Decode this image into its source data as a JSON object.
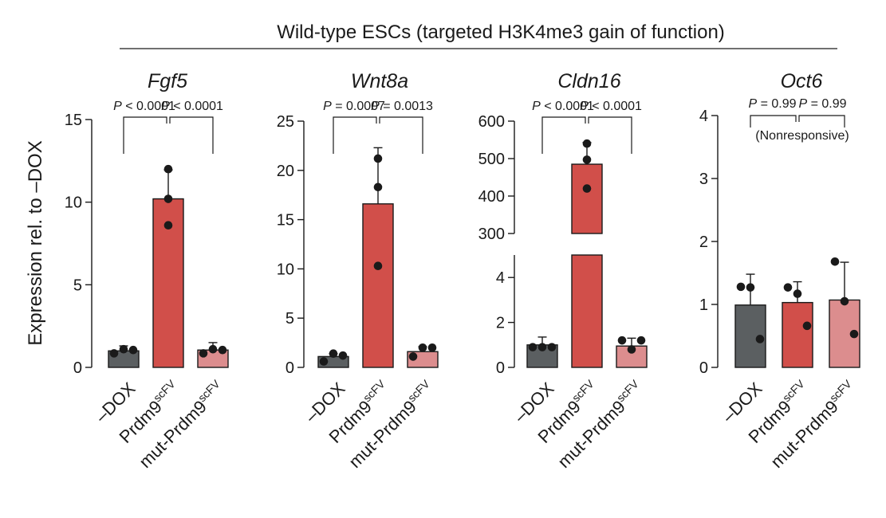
{
  "header": "Wild-type ESCs (targeted H3K4me3 gain of function)",
  "ylabel": "Expression rel. to –DOX",
  "categories": [
    {
      "base": "–DOX",
      "sup": ""
    },
    {
      "base": "Prdm9",
      "sup": "scFV"
    },
    {
      "base": "mut-Prdm9",
      "sup": "scFV"
    }
  ],
  "pvalue_prefix": "P",
  "colors": {
    "dox": "#5b5f61",
    "prdm9": "#d14f4a",
    "mut": "#dc8d8e"
  },
  "chart_data": [
    {
      "type": "bar",
      "title": "Fgf5",
      "ylim": [
        0,
        15
      ],
      "yticks": [
        "0",
        "5",
        "10",
        "15"
      ],
      "values": [
        1.0,
        10.2,
        1.05
      ],
      "error": [
        0.3,
        1.75,
        0.45
      ],
      "points": [
        [
          0.85,
          1.1,
          1.05
        ],
        [
          12.0,
          10.2,
          8.6
        ],
        [
          0.85,
          1.1,
          1.05
        ]
      ],
      "pvalues": [
        "P < 0.0001",
        "P < 0.0001"
      ]
    },
    {
      "type": "bar",
      "title": "Wnt8a",
      "ylim": [
        0,
        25
      ],
      "yticks": [
        "0",
        "5",
        "10",
        "15",
        "20",
        "25"
      ],
      "values": [
        1.1,
        16.6,
        1.6
      ],
      "error": [
        0.3,
        5.7,
        0.5
      ],
      "points": [
        [
          0.6,
          1.4,
          1.2
        ],
        [
          21.2,
          18.3,
          10.3
        ],
        [
          1.1,
          2.0,
          2.0
        ]
      ],
      "pvalues": [
        "P = 0.0007",
        "P = 0.0013"
      ]
    },
    {
      "type": "bar",
      "title": "Cldn16",
      "broken_axis": true,
      "lower_ylim": [
        0,
        5
      ],
      "lower_yticks": [
        "0",
        "2",
        "4"
      ],
      "upper_ylim": [
        300,
        600
      ],
      "upper_yticks": [
        "300",
        "400",
        "500",
        "600"
      ],
      "values": [
        1.0,
        485,
        0.95
      ],
      "error": [
        0.35,
        58,
        0.35
      ],
      "points": [
        [
          0.9,
          0.9,
          0.9
        ],
        [
          540,
          497,
          420
        ],
        [
          1.2,
          0.8,
          1.2
        ]
      ],
      "pvalues": [
        "P < 0.0001",
        "P < 0.0001"
      ]
    },
    {
      "type": "bar",
      "title": "Oct6",
      "ylim": [
        0,
        4
      ],
      "yticks": [
        "0",
        "1",
        "2",
        "3",
        "4"
      ],
      "values": [
        0.99,
        1.03,
        1.07
      ],
      "error": [
        0.49,
        0.33,
        0.6
      ],
      "points": [
        [
          1.28,
          1.27,
          0.45
        ],
        [
          1.27,
          1.17,
          0.66
        ],
        [
          1.68,
          1.05,
          0.53
        ]
      ],
      "pvalues": [
        "P = 0.99",
        "P = 0.99"
      ],
      "note": "(Nonresponsive)"
    }
  ]
}
